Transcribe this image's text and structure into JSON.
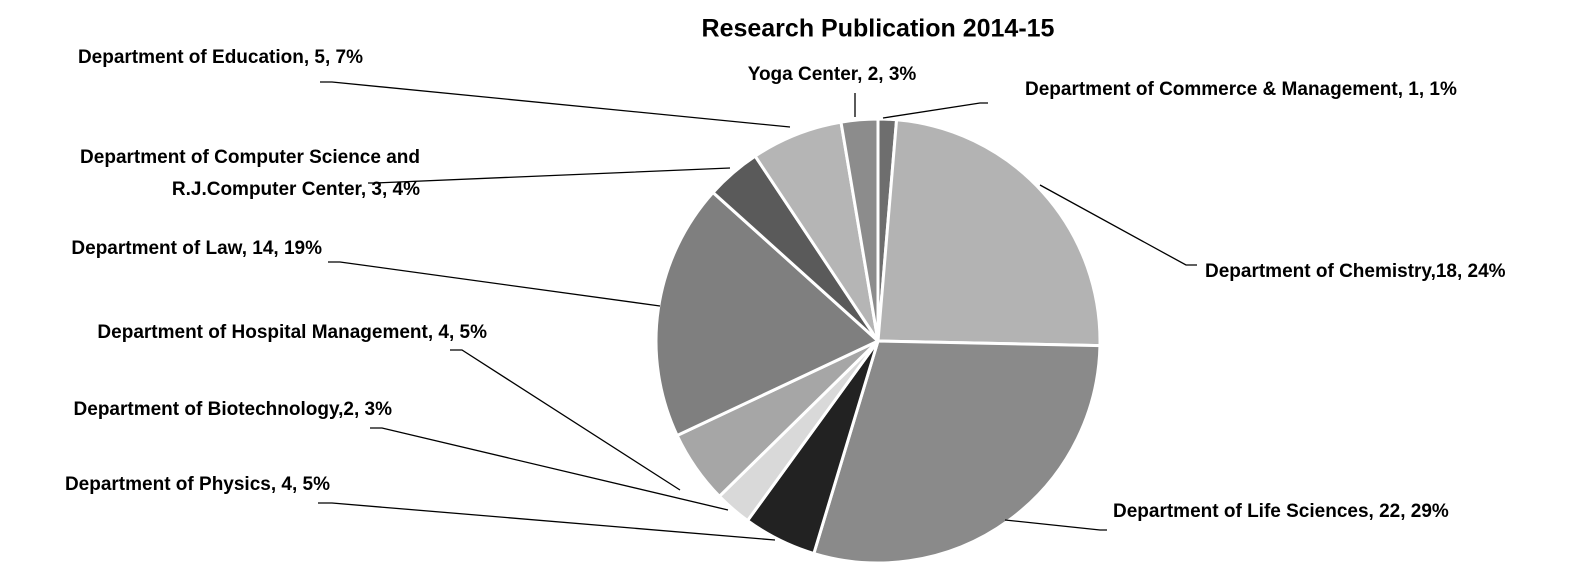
{
  "chart_data": {
    "type": "pie",
    "title": "Research Publication 2014-15",
    "values": [
      1,
      18,
      22,
      4,
      2,
      4,
      14,
      3,
      5,
      2
    ],
    "value_labels": [
      "Department of Commerce & Management, 1, 1%",
      "Department of Chemistry,18, 24%",
      "Department of Life Sciences, 22, 29%",
      "Department of Physics, 4, 5%",
      "Department of Biotechnology,2, 3%",
      "Department of Hospital Management, 4, 5%",
      "Department of Law, 14, 19%",
      "Department of Computer Science and\nR.J.Computer Center, 3, 4%",
      "Department of Education, 5, 7%",
      "Yoga Center, 2, 3%"
    ],
    "colors": [
      "#6e6e6e",
      "#b3b3b3",
      "#8a8a8a",
      "#222222",
      "#d9d9d9",
      "#a6a6a6",
      "#7f7f7f",
      "#5a5a5a",
      "#b5b5b5",
      "#8c8c8c"
    ]
  }
}
